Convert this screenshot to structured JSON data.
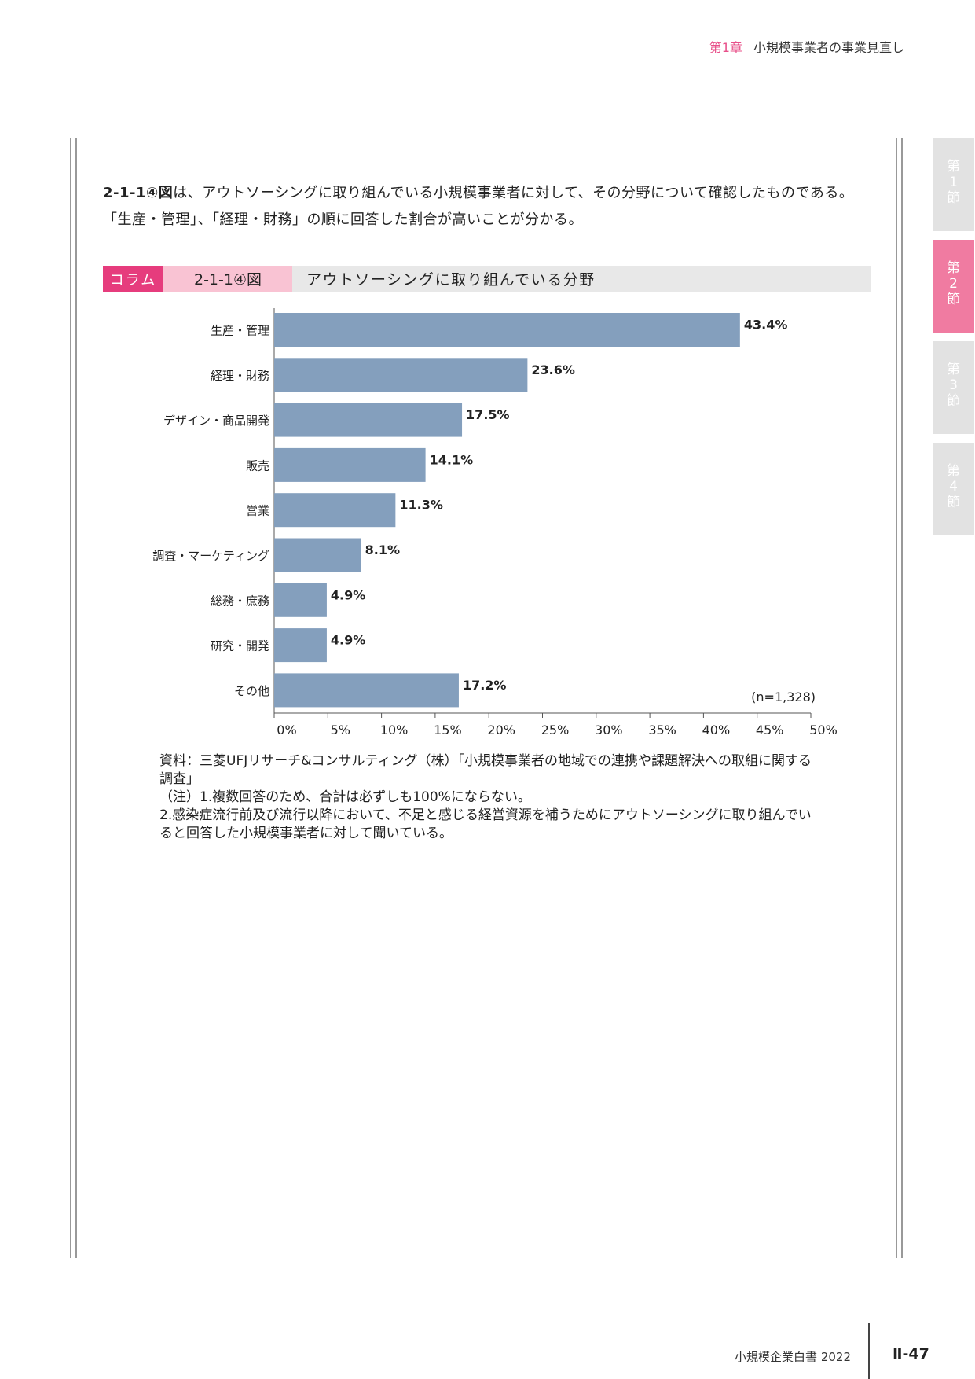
{
  "header": {
    "chapter": "第1章",
    "title": "小規模事業者の事業見直し"
  },
  "side_tabs": [
    {
      "label": [
        "第",
        "1",
        "節"
      ],
      "active": false
    },
    {
      "label": [
        "第",
        "2",
        "節"
      ],
      "active": true
    },
    {
      "label": [
        "第",
        "3",
        "節"
      ],
      "active": false
    },
    {
      "label": [
        "第",
        "4",
        "節"
      ],
      "active": false
    }
  ],
  "paragraph": {
    "ref": "2-1-1④図",
    "text": "は、アウトソーシングに取り組んでいる小規模事業者に対して、その分野について確認したものである。「生産・管理」、「経理・財務」の順に回答した割合が高いことが分かる。"
  },
  "figure": {
    "column_label": "コラム",
    "number": "2-1-1④図",
    "title": "アウトソーシングに取り組んでいる分野"
  },
  "chart_data": {
    "type": "bar",
    "orientation": "horizontal",
    "categories": [
      "生産・管理",
      "経理・財務",
      "デザイン・商品開発",
      "販売",
      "営業",
      "調査・マーケティング",
      "総務・庶務",
      "研究・開発",
      "その他"
    ],
    "values": [
      43.4,
      23.6,
      17.5,
      14.1,
      11.3,
      8.1,
      4.9,
      4.9,
      17.2
    ],
    "value_labels": [
      "43.4%",
      "23.6%",
      "17.5%",
      "14.1%",
      "11.3%",
      "8.1%",
      "4.9%",
      "4.9%",
      "17.2%"
    ],
    "xlim": [
      0,
      50
    ],
    "xticks": [
      "0%",
      "5%",
      "10%",
      "15%",
      "20%",
      "25%",
      "30%",
      "35%",
      "40%",
      "45%",
      "50%"
    ],
    "annotation": "(n=1,328)",
    "bar_color": "#849fbd",
    "grid": false
  },
  "notes": {
    "source": "資料：三菱UFJリサーチ&コンサルティング（株）「小規模事業者の地域での連携や課題解決への取組に関する調査」",
    "note1": "（注）1.複数回答のため、合計は必ずしも100%にならない。",
    "note2": "2.感染症流行前及び流行以降において、不足と感じる経営資源を補うためにアウトソーシングに取り組んでいると回答した小規模事業者に対して聞いている。"
  },
  "footer": {
    "book": "小規模企業白書 2022",
    "page": "Ⅱ-47"
  }
}
